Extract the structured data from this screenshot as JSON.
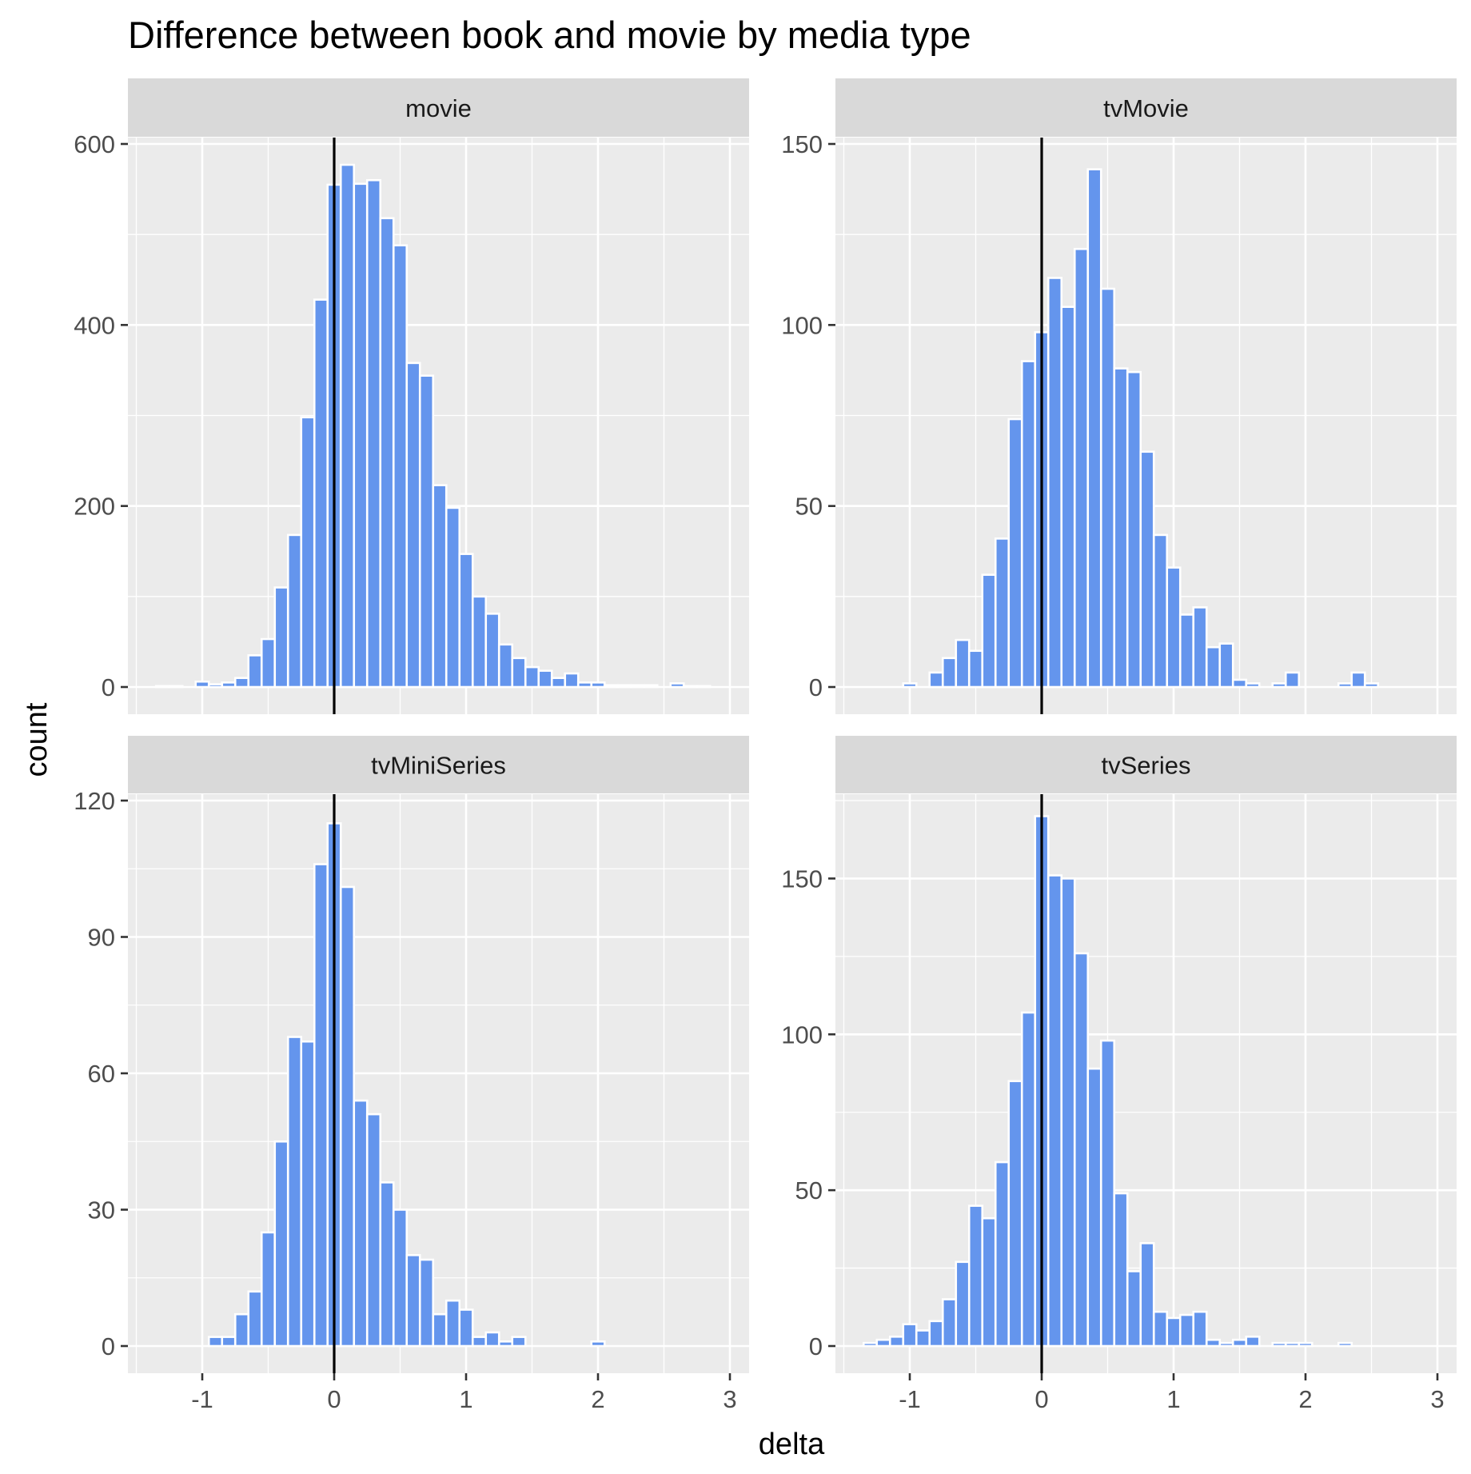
{
  "chart_data": {
    "type": "bar",
    "title": "Difference between book and movie by media type",
    "xlabel": "delta",
    "ylabel": "count",
    "bin_width": 0.1,
    "vline_x": 0,
    "fill_color": "#6495ed",
    "outline_color": "#ffffff",
    "panel_background": "#ebebeb",
    "strip_background": "#d9d9d9",
    "xlim": [
      -1.5,
      3
    ],
    "x_ticks": [
      -1,
      0,
      1,
      2,
      3
    ],
    "x_tick_labels": [
      "-1",
      "0",
      "1",
      "2",
      "3"
    ],
    "grid": true,
    "legend": "none",
    "panels": [
      {
        "name": "movie",
        "ylim": [
          0,
          600
        ],
        "y_ticks": [
          0,
          200,
          400,
          600
        ],
        "y_tick_labels": [
          "0",
          "200",
          "400",
          "600"
        ],
        "bins": [
          {
            "x": -1.3,
            "count": 1
          },
          {
            "x": -1.2,
            "count": 1
          },
          {
            "x": -1.0,
            "count": 6
          },
          {
            "x": -0.9,
            "count": 3
          },
          {
            "x": -0.8,
            "count": 5
          },
          {
            "x": -0.7,
            "count": 10
          },
          {
            "x": -0.6,
            "count": 35
          },
          {
            "x": -0.5,
            "count": 53
          },
          {
            "x": -0.4,
            "count": 110
          },
          {
            "x": -0.3,
            "count": 168
          },
          {
            "x": -0.2,
            "count": 298
          },
          {
            "x": -0.1,
            "count": 428
          },
          {
            "x": 0.0,
            "count": 555
          },
          {
            "x": 0.1,
            "count": 577
          },
          {
            "x": 0.2,
            "count": 556
          },
          {
            "x": 0.3,
            "count": 560
          },
          {
            "x": 0.4,
            "count": 518
          },
          {
            "x": 0.5,
            "count": 488
          },
          {
            "x": 0.6,
            "count": 358
          },
          {
            "x": 0.7,
            "count": 344
          },
          {
            "x": 0.8,
            "count": 223
          },
          {
            "x": 0.9,
            "count": 198
          },
          {
            "x": 1.0,
            "count": 147
          },
          {
            "x": 1.1,
            "count": 100
          },
          {
            "x": 1.2,
            "count": 81
          },
          {
            "x": 1.3,
            "count": 47
          },
          {
            "x": 1.4,
            "count": 32
          },
          {
            "x": 1.5,
            "count": 22
          },
          {
            "x": 1.6,
            "count": 18
          },
          {
            "x": 1.7,
            "count": 10
          },
          {
            "x": 1.8,
            "count": 15
          },
          {
            "x": 1.9,
            "count": 5
          },
          {
            "x": 2.0,
            "count": 5
          },
          {
            "x": 2.1,
            "count": 2
          },
          {
            "x": 2.2,
            "count": 2
          },
          {
            "x": 2.3,
            "count": 2
          },
          {
            "x": 2.4,
            "count": 2
          },
          {
            "x": 2.6,
            "count": 4
          },
          {
            "x": 2.7,
            "count": 1
          },
          {
            "x": 2.8,
            "count": 1
          }
        ]
      },
      {
        "name": "tvMovie",
        "ylim": [
          0,
          150
        ],
        "y_ticks": [
          0,
          50,
          100,
          150
        ],
        "y_tick_labels": [
          "0",
          "50",
          "100",
          "150"
        ],
        "bins": [
          {
            "x": -1.0,
            "count": 1
          },
          {
            "x": -0.8,
            "count": 4
          },
          {
            "x": -0.7,
            "count": 8
          },
          {
            "x": -0.6,
            "count": 13
          },
          {
            "x": -0.5,
            "count": 10
          },
          {
            "x": -0.4,
            "count": 31
          },
          {
            "x": -0.3,
            "count": 41
          },
          {
            "x": -0.2,
            "count": 74
          },
          {
            "x": -0.1,
            "count": 90
          },
          {
            "x": 0.0,
            "count": 98
          },
          {
            "x": 0.1,
            "count": 113
          },
          {
            "x": 0.2,
            "count": 105
          },
          {
            "x": 0.3,
            "count": 121
          },
          {
            "x": 0.4,
            "count": 143
          },
          {
            "x": 0.5,
            "count": 110
          },
          {
            "x": 0.6,
            "count": 88
          },
          {
            "x": 0.7,
            "count": 87
          },
          {
            "x": 0.8,
            "count": 65
          },
          {
            "x": 0.9,
            "count": 42
          },
          {
            "x": 1.0,
            "count": 33
          },
          {
            "x": 1.1,
            "count": 20
          },
          {
            "x": 1.2,
            "count": 22
          },
          {
            "x": 1.3,
            "count": 11
          },
          {
            "x": 1.4,
            "count": 12
          },
          {
            "x": 1.5,
            "count": 2
          },
          {
            "x": 1.6,
            "count": 1
          },
          {
            "x": 1.8,
            "count": 1
          },
          {
            "x": 1.9,
            "count": 4
          },
          {
            "x": 2.3,
            "count": 1
          },
          {
            "x": 2.4,
            "count": 4
          },
          {
            "x": 2.5,
            "count": 1
          }
        ]
      },
      {
        "name": "tvMiniSeries",
        "ylim": [
          0,
          120
        ],
        "y_ticks": [
          0,
          30,
          60,
          90,
          120
        ],
        "y_tick_labels": [
          "0",
          "30",
          "60",
          "90",
          "120"
        ],
        "bins": [
          {
            "x": -0.9,
            "count": 2
          },
          {
            "x": -0.8,
            "count": 2
          },
          {
            "x": -0.7,
            "count": 7
          },
          {
            "x": -0.6,
            "count": 12
          },
          {
            "x": -0.5,
            "count": 25
          },
          {
            "x": -0.4,
            "count": 45
          },
          {
            "x": -0.3,
            "count": 68
          },
          {
            "x": -0.2,
            "count": 67
          },
          {
            "x": -0.1,
            "count": 106
          },
          {
            "x": 0.0,
            "count": 115
          },
          {
            "x": 0.1,
            "count": 101
          },
          {
            "x": 0.2,
            "count": 54
          },
          {
            "x": 0.3,
            "count": 51
          },
          {
            "x": 0.4,
            "count": 36
          },
          {
            "x": 0.5,
            "count": 30
          },
          {
            "x": 0.6,
            "count": 20
          },
          {
            "x": 0.7,
            "count": 19
          },
          {
            "x": 0.8,
            "count": 7
          },
          {
            "x": 0.9,
            "count": 10
          },
          {
            "x": 1.0,
            "count": 8
          },
          {
            "x": 1.1,
            "count": 2
          },
          {
            "x": 1.2,
            "count": 3
          },
          {
            "x": 1.3,
            "count": 1
          },
          {
            "x": 1.4,
            "count": 2
          },
          {
            "x": 2.0,
            "count": 1
          }
        ]
      },
      {
        "name": "tvSeries",
        "ylim": [
          0,
          175
        ],
        "y_ticks": [
          0,
          50,
          100,
          150
        ],
        "y_tick_labels": [
          "0",
          "50",
          "100",
          "150"
        ],
        "bins": [
          {
            "x": -1.3,
            "count": 1
          },
          {
            "x": -1.2,
            "count": 2
          },
          {
            "x": -1.1,
            "count": 3
          },
          {
            "x": -1.0,
            "count": 7
          },
          {
            "x": -0.9,
            "count": 5
          },
          {
            "x": -0.8,
            "count": 8
          },
          {
            "x": -0.7,
            "count": 15
          },
          {
            "x": -0.6,
            "count": 27
          },
          {
            "x": -0.5,
            "count": 45
          },
          {
            "x": -0.4,
            "count": 41
          },
          {
            "x": -0.3,
            "count": 59
          },
          {
            "x": -0.2,
            "count": 85
          },
          {
            "x": -0.1,
            "count": 107
          },
          {
            "x": 0.0,
            "count": 170
          },
          {
            "x": 0.1,
            "count": 151
          },
          {
            "x": 0.2,
            "count": 150
          },
          {
            "x": 0.3,
            "count": 126
          },
          {
            "x": 0.4,
            "count": 89
          },
          {
            "x": 0.5,
            "count": 98
          },
          {
            "x": 0.6,
            "count": 49
          },
          {
            "x": 0.7,
            "count": 24
          },
          {
            "x": 0.8,
            "count": 33
          },
          {
            "x": 0.9,
            "count": 11
          },
          {
            "x": 1.0,
            "count": 9
          },
          {
            "x": 1.1,
            "count": 10
          },
          {
            "x": 1.2,
            "count": 11
          },
          {
            "x": 1.3,
            "count": 2
          },
          {
            "x": 1.4,
            "count": 1
          },
          {
            "x": 1.5,
            "count": 2
          },
          {
            "x": 1.6,
            "count": 3
          },
          {
            "x": 1.8,
            "count": 1
          },
          {
            "x": 1.9,
            "count": 1
          },
          {
            "x": 2.0,
            "count": 1
          },
          {
            "x": 2.3,
            "count": 1
          }
        ]
      }
    ]
  }
}
